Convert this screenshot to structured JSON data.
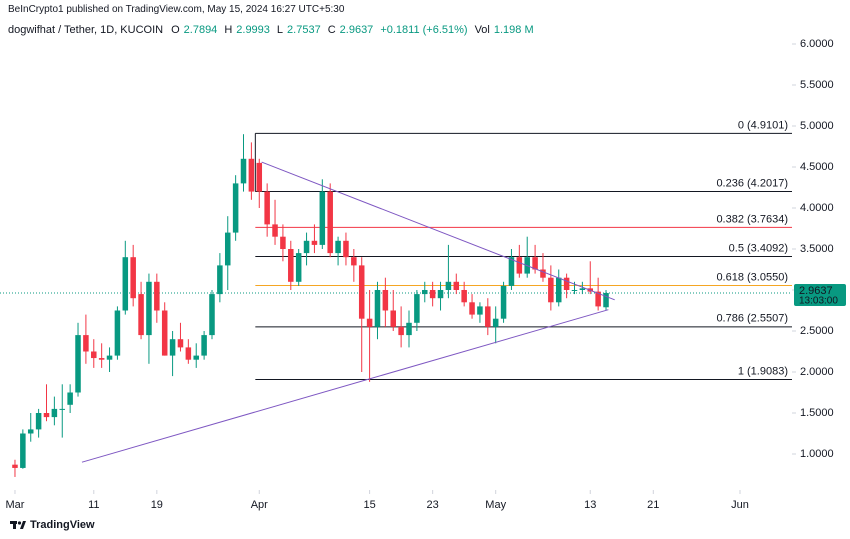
{
  "header": "BeInCrypto1 published on TradingView.com, May 15, 2024 16:27 UTC+5:30",
  "legend": {
    "symbol": "dogwifhat / Tether, 1D, KUCOIN",
    "open_label": "O",
    "open": 2.7894,
    "high_label": "H",
    "high": 2.9993,
    "low_label": "L",
    "low": 2.7537,
    "close_label": "C",
    "close": 2.9637,
    "change": "+0.1811 (+6.51%)",
    "volume_label": "Vol",
    "volume": "1.198 M"
  },
  "branding": "TradingView",
  "chart_data": {
    "type": "candlestick",
    "x": [
      0,
      1,
      2,
      3,
      4,
      5,
      6,
      7,
      8,
      9,
      10,
      11,
      12,
      13,
      14,
      15,
      16,
      17,
      18,
      19,
      20,
      21,
      22,
      23,
      24,
      25,
      26,
      27,
      28,
      29,
      30,
      31,
      32,
      33,
      34,
      35,
      36,
      37,
      38,
      39,
      40,
      41,
      42,
      43,
      44,
      45,
      46,
      47,
      48,
      49,
      50,
      51,
      52,
      53,
      54,
      55,
      56,
      57,
      58,
      59,
      60,
      61,
      62,
      63,
      64,
      65,
      66,
      67,
      68,
      69,
      70,
      71,
      72,
      73,
      74,
      75
    ],
    "open": [
      0.87,
      0.83,
      1.25,
      1.3,
      1.5,
      1.45,
      1.55,
      1.6,
      1.75,
      2.45,
      2.25,
      2.17,
      2.15,
      2.2,
      2.75,
      3.4,
      2.95,
      2.45,
      3.1,
      2.75,
      2.2,
      2.4,
      2.3,
      2.15,
      2.2,
      2.45,
      2.95,
      3.3,
      3.7,
      4.3,
      4.6,
      4.55,
      4.2,
      3.8,
      3.65,
      3.5,
      3.1,
      3.45,
      3.6,
      3.55,
      4.2,
      3.45,
      3.6,
      3.4,
      3.3,
      2.65,
      2.55,
      3.0,
      2.75,
      2.55,
      2.45,
      2.6,
      2.95,
      3.0,
      2.9,
      3.0,
      3.1,
      3.0,
      2.85,
      2.7,
      2.8,
      2.55,
      2.65,
      3.05,
      3.4,
      3.2,
      3.4,
      3.25,
      3.15,
      2.85,
      3.15,
      3.0,
      3.0,
      3.02,
      2.98,
      2.7894
    ],
    "high": [
      0.93,
      1.3,
      1.5,
      1.55,
      1.85,
      1.7,
      1.85,
      1.85,
      2.6,
      2.7,
      2.4,
      2.35,
      2.3,
      2.8,
      3.6,
      3.55,
      3.1,
      3.2,
      3.2,
      2.85,
      2.5,
      2.6,
      2.4,
      2.35,
      2.5,
      3.0,
      3.45,
      3.9,
      4.4,
      4.9,
      4.8,
      4.6,
      4.3,
      4.1,
      3.8,
      3.6,
      3.5,
      3.7,
      3.8,
      4.35,
      4.3,
      3.65,
      3.7,
      3.5,
      3.4,
      3.0,
      3.1,
      3.15,
      3.0,
      2.8,
      2.75,
      3.0,
      3.1,
      3.1,
      3.1,
      3.55,
      3.2,
      3.1,
      2.95,
      2.85,
      2.9,
      2.8,
      3.1,
      3.5,
      3.55,
      3.65,
      3.55,
      3.45,
      3.3,
      3.25,
      3.2,
      3.1,
      3.1,
      3.35,
      3.15,
      2.9993
    ],
    "low": [
      0.72,
      0.82,
      1.15,
      1.2,
      1.4,
      1.35,
      1.2,
      1.5,
      1.7,
      2.1,
      2.05,
      2.05,
      2.0,
      2.15,
      2.7,
      2.8,
      2.4,
      2.1,
      2.6,
      2.2,
      1.95,
      2.25,
      2.1,
      2.05,
      2.15,
      2.4,
      2.85,
      3.0,
      3.6,
      4.2,
      4.1,
      4.0,
      3.65,
      3.55,
      3.35,
      3.0,
      3.05,
      3.3,
      3.45,
      3.5,
      3.4,
      3.3,
      3.3,
      3.1,
      2.0,
      1.88,
      2.4,
      2.55,
      2.5,
      2.3,
      2.3,
      2.5,
      2.85,
      2.8,
      2.75,
      2.9,
      2.95,
      2.8,
      2.65,
      2.6,
      2.45,
      2.35,
      2.6,
      3.0,
      3.15,
      3.15,
      3.2,
      3.1,
      2.75,
      2.8,
      2.9,
      2.95,
      2.95,
      2.95,
      2.75,
      2.7537
    ],
    "close": [
      0.83,
      1.25,
      1.3,
      1.5,
      1.45,
      1.55,
      1.55,
      1.75,
      2.45,
      2.25,
      2.17,
      2.15,
      2.2,
      2.75,
      3.4,
      2.9,
      2.45,
      3.1,
      2.75,
      2.2,
      2.4,
      2.3,
      2.15,
      2.2,
      2.45,
      2.95,
      3.3,
      3.7,
      4.3,
      4.6,
      4.2,
      4.2,
      3.8,
      3.65,
      3.5,
      3.1,
      3.45,
      3.6,
      3.55,
      4.2,
      3.45,
      3.6,
      3.4,
      3.3,
      2.65,
      2.55,
      3.0,
      2.75,
      2.55,
      2.45,
      2.6,
      2.95,
      3.0,
      2.9,
      3.0,
      3.1,
      3.0,
      2.85,
      2.7,
      2.8,
      2.55,
      2.65,
      3.05,
      3.4,
      3.2,
      3.4,
      3.25,
      3.15,
      2.85,
      3.15,
      3.0,
      3.0,
      3.02,
      2.98,
      2.8,
      2.9637
    ],
    "up_color": "#089981",
    "down_color": "#f23645",
    "xlim": [
      -1.9,
      98.6
    ],
    "xticks": [
      {
        "value": 0,
        "label": "Mar"
      },
      {
        "value": 10,
        "label": "11"
      },
      {
        "value": 18,
        "label": "19"
      },
      {
        "value": 31,
        "label": "Apr"
      },
      {
        "value": 45,
        "label": "15"
      },
      {
        "value": 53,
        "label": "23"
      },
      {
        "value": 61,
        "label": "May"
      },
      {
        "value": 73,
        "label": "13"
      },
      {
        "value": 81,
        "label": "21"
      },
      {
        "value": 92,
        "label": "Jun"
      }
    ],
    "ylim": [
      0.561,
      6.073
    ],
    "yticks": [
      {
        "value": 6,
        "label": "6.0000"
      },
      {
        "value": 5.5,
        "label": "5.5000"
      },
      {
        "value": 5,
        "label": "5.0000"
      },
      {
        "value": 4.5,
        "label": "4.5000"
      },
      {
        "value": 4,
        "label": "4.0000"
      },
      {
        "value": 3.5,
        "label": "3.5000"
      },
      {
        "value": 3,
        "label": "3.0000"
      },
      {
        "value": 2.5,
        "label": "2.5000"
      },
      {
        "value": 2,
        "label": "2.0000"
      },
      {
        "value": 1.5,
        "label": "1.5000"
      },
      {
        "value": 1,
        "label": "1.0000"
      }
    ],
    "last_price": 2.9637,
    "countdown": "13:03:00",
    "last_price_color": "#089981",
    "fib": {
      "x_start": 30.5,
      "levels": [
        {
          "value": 4.9101,
          "label": "0 (4.9101)",
          "color": "#131722"
        },
        {
          "value": 4.2017,
          "label": "0.236 (4.2017)",
          "color": "#131722"
        },
        {
          "value": 3.7634,
          "label": "0.382 (3.7634)",
          "color": "#f23645"
        },
        {
          "value": 3.4092,
          "label": "0.5 (3.4092)",
          "color": "#131722"
        },
        {
          "value": 3.055,
          "label": "0.618 (3.0550)",
          "color": "#f5a623"
        },
        {
          "value": 2.5507,
          "label": "0.786 (2.5507)",
          "color": "#131722"
        },
        {
          "value": 1.9083,
          "label": "1 (1.9083)",
          "color": "#131722"
        }
      ]
    },
    "trendline_color": "#7e57c2",
    "trendlines": [
      {
        "x": [
          31.3,
          76.1
        ],
        "y": [
          4.56,
          2.88
        ]
      },
      {
        "x": [
          8.5,
          75.3
        ],
        "y": [
          0.9,
          2.76
        ]
      }
    ]
  }
}
